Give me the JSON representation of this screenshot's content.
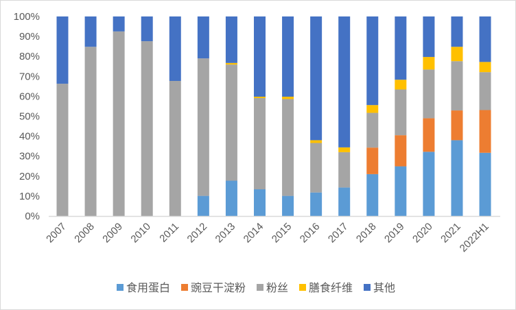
{
  "chart_data": {
    "type": "bar",
    "stacked": true,
    "percent_stacked": true,
    "categories": [
      "2007",
      "2008",
      "2009",
      "2010",
      "2011",
      "2012",
      "2013",
      "2014",
      "2015",
      "2016",
      "2017",
      "2018",
      "2019",
      "2020",
      "2021",
      "2022H1"
    ],
    "series": [
      {
        "name": "食用蛋白",
        "color": "#5B9BD5",
        "values": [
          0,
          0,
          0,
          0,
          0,
          10.1,
          17.7,
          13.4,
          10.1,
          11.8,
          14.3,
          21.0,
          24.9,
          32.2,
          38.0,
          31.7
        ]
      },
      {
        "name": "豌豆干淀粉",
        "color": "#ED7D31",
        "values": [
          0,
          0,
          0,
          0,
          0,
          0,
          0,
          0,
          0,
          0,
          0,
          13.3,
          15.6,
          16.8,
          14.9,
          21.4
        ]
      },
      {
        "name": "粉丝",
        "color": "#A5A5A5",
        "values": [
          66.3,
          84.8,
          92.5,
          87.6,
          67.7,
          68.9,
          58.2,
          45.7,
          48.5,
          24.8,
          17.7,
          17.4,
          22.9,
          24.4,
          24.7,
          19.0
        ]
      },
      {
        "name": "膳食纤维",
        "color": "#FFC000",
        "values": [
          0,
          0,
          0,
          0,
          0,
          0,
          0.8,
          0.7,
          1.2,
          1.4,
          2.4,
          3.9,
          4.9,
          6.3,
          7.2,
          5.1
        ]
      },
      {
        "name": "其他",
        "color": "#4472C4",
        "values": [
          33.7,
          15.2,
          7.5,
          12.4,
          32.3,
          21.0,
          23.3,
          40.2,
          40.2,
          62.0,
          65.6,
          44.4,
          31.7,
          20.3,
          15.2,
          22.8
        ]
      }
    ],
    "yticks": [
      "0%",
      "10%",
      "20%",
      "30%",
      "40%",
      "50%",
      "60%",
      "70%",
      "80%",
      "90%",
      "100%"
    ],
    "ylim": [
      0,
      100
    ],
    "grid": false,
    "legend": "bottom",
    "title": "",
    "xlabel": "",
    "ylabel": ""
  }
}
